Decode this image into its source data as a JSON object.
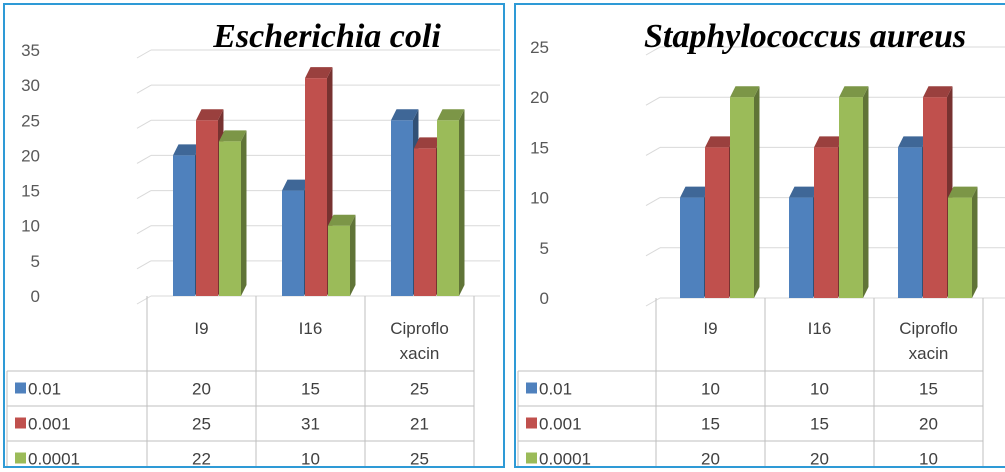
{
  "chart_data": [
    {
      "type": "bar",
      "title": "Escherichia coli",
      "categories": [
        "I9",
        "I16",
        "Ciproflo xacin"
      ],
      "category_lines": [
        [
          "I9"
        ],
        [
          "I16"
        ],
        [
          "Ciproflo",
          "xacin"
        ]
      ],
      "ylim": [
        0,
        35
      ],
      "yticks": [
        0,
        5,
        10,
        15,
        20,
        25,
        30,
        35
      ],
      "grid": true,
      "series": [
        {
          "name": "0.01",
          "values": [
            20,
            15,
            25
          ],
          "color": "#4f81bd"
        },
        {
          "name": "0.001",
          "values": [
            25,
            31,
            21
          ],
          "color": "#c0504d"
        },
        {
          "name": "0.0001",
          "values": [
            22,
            10,
            25
          ],
          "color": "#9bbb59"
        }
      ]
    },
    {
      "type": "bar",
      "title": "Staphylococcus aureus",
      "categories": [
        "I9",
        "I16",
        "Ciproflo xacin"
      ],
      "category_lines": [
        [
          "I9"
        ],
        [
          "I16"
        ],
        [
          "Ciproflo",
          "xacin"
        ]
      ],
      "ylim": [
        0,
        25
      ],
      "yticks": [
        0,
        5,
        10,
        15,
        20,
        25
      ],
      "grid": true,
      "series": [
        {
          "name": "0.01",
          "values": [
            10,
            10,
            15
          ],
          "color": "#4f81bd"
        },
        {
          "name": "0.001",
          "values": [
            15,
            15,
            20
          ],
          "color": "#c0504d"
        },
        {
          "name": "0.0001",
          "values": [
            20,
            20,
            10
          ],
          "color": "#9bbb59"
        }
      ]
    }
  ]
}
